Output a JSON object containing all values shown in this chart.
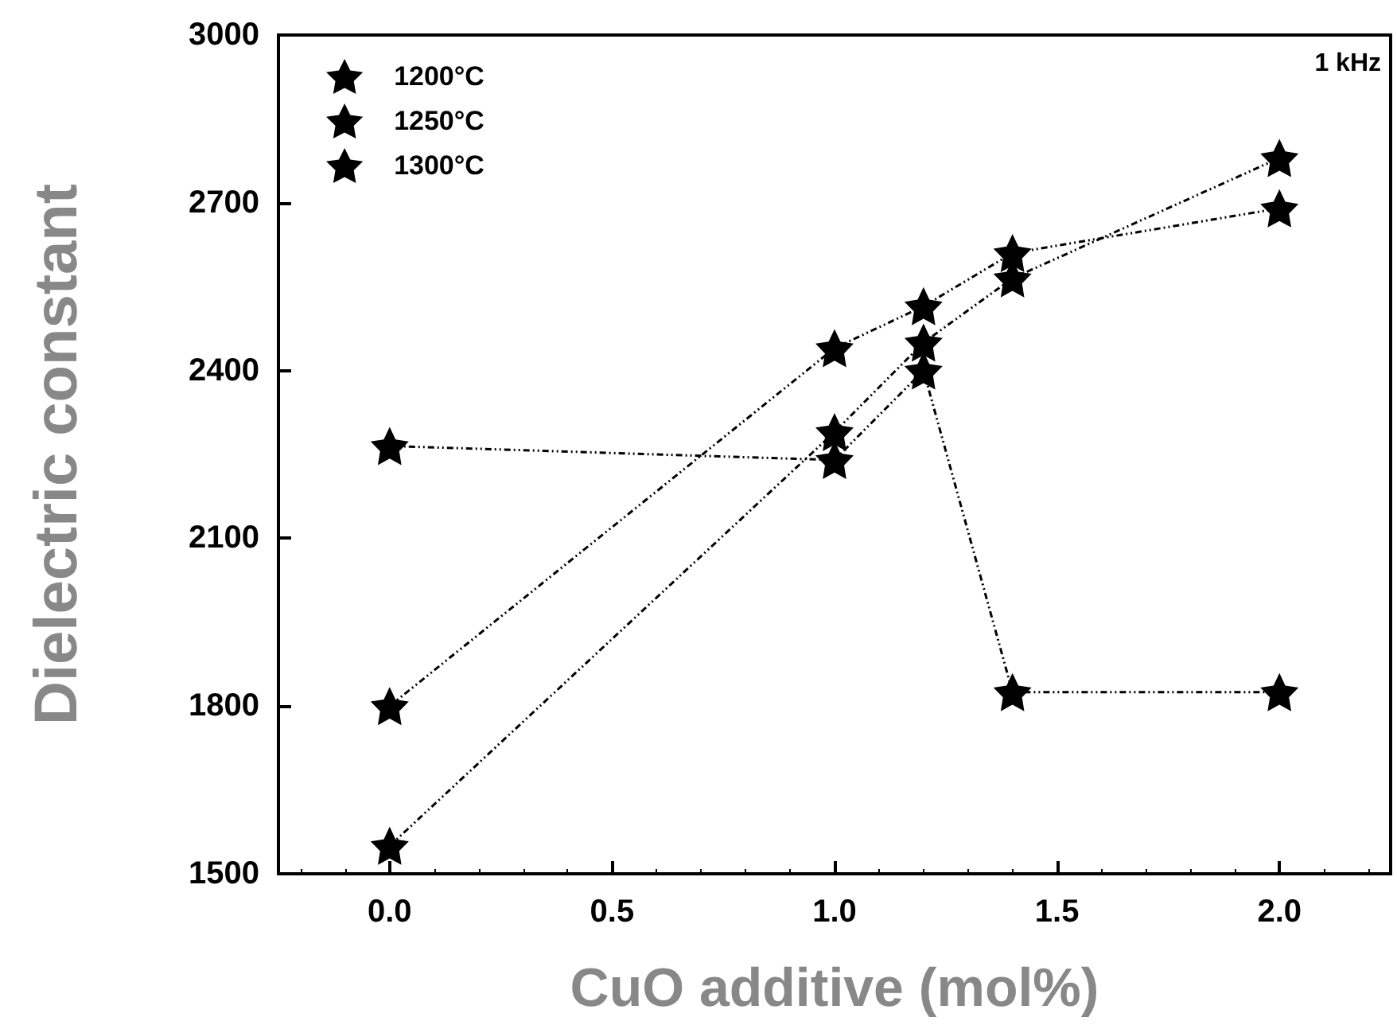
{
  "chart_data": {
    "type": "line",
    "xlabel": "CuO additive (mol%)",
    "ylabel": "Dielectric constant",
    "annotations": [
      "1 kHz"
    ],
    "series": [
      {
        "name": "1200°C",
        "color": "#000000",
        "x": [
          0,
          1.0,
          1.2,
          1.4,
          2.0
        ],
        "values": [
          1550,
          2290,
          2450,
          2565,
          2780
        ]
      },
      {
        "name": "1250°C",
        "color": "#000000",
        "x": [
          0,
          1.0,
          1.2,
          1.4,
          2.0
        ],
        "values": [
          1800,
          2440,
          2515,
          2610,
          2690
        ]
      },
      {
        "name": "1300°C",
        "color": "#000000",
        "x": [
          0,
          1.0,
          1.2,
          1.4,
          2.0
        ],
        "values": [
          2265,
          2240,
          2400,
          1825,
          1825
        ]
      }
    ],
    "xlim": [
      -0.25,
      2.25
    ],
    "xticks": [
      {
        "value": 0,
        "label": "0.0"
      },
      {
        "value": 0.5,
        "label": "0.5"
      },
      {
        "value": 1,
        "label": "1.0"
      },
      {
        "value": 1.5,
        "label": "1.5"
      },
      {
        "value": 2,
        "label": "2.0"
      }
    ],
    "ylim": [
      1500,
      3000
    ],
    "yticks": [
      1500,
      1800,
      2100,
      2400,
      2700,
      3000
    ],
    "grid": false,
    "legend": "top left",
    "marker": "star",
    "line_style": "dashed"
  }
}
